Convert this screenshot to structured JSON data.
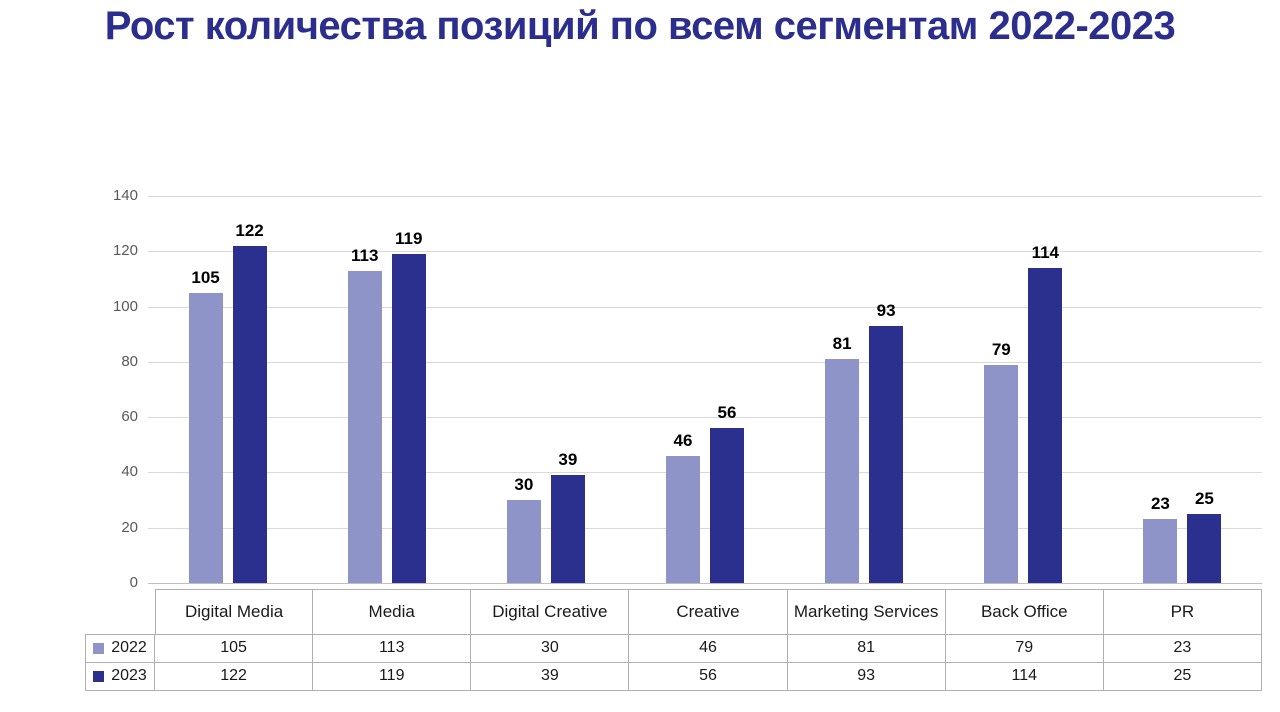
{
  "title": "Рост количества позиций по всем сегментам 2022-2023",
  "colors": {
    "title": "#2b2e8c",
    "grid": "#d9d9d9",
    "axis_line": "#bfbfbf",
    "axis_text": "#595959",
    "table_border": "#b0b0b0",
    "bar_label_text": "#000000"
  },
  "chart_data": {
    "type": "bar",
    "title": "Рост количества позиций по всем сегментам 2022-2023",
    "categories": [
      "Digital Media",
      "Media",
      "Digital Creative",
      "Creative",
      "Marketing Services",
      "Back Office",
      "PR"
    ],
    "series": [
      {
        "name": "2022",
        "color": "#8e93c8",
        "values": [
          105,
          113,
          30,
          46,
          81,
          79,
          23
        ]
      },
      {
        "name": "2023",
        "color": "#2b2f8e",
        "values": [
          122,
          119,
          39,
          56,
          93,
          114,
          25
        ]
      }
    ],
    "ylim": [
      0,
      140
    ],
    "ytick_step": 20,
    "grid": true,
    "data_labels": true,
    "legend_position": "bottom-table",
    "xlabel": "",
    "ylabel": ""
  }
}
